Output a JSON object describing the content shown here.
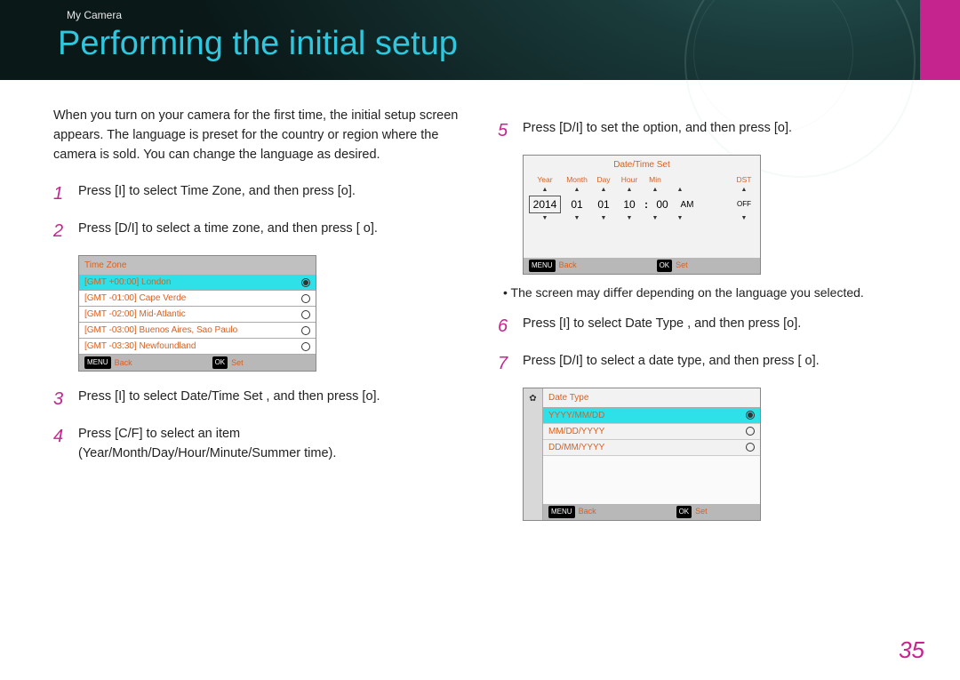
{
  "breadcrumb": "My Camera",
  "title": "Performing the initial setup",
  "page_number": "35",
  "accent_color": "#c5248f",
  "cyan_color": "#2ec7dd",
  "orange_color": "#d96020",
  "highlight_color": "#2ee0e8",
  "intro": "When you turn on your camera for the ﬁrst time, the initial setup screen appears. The language is preset for the country or region where the camera is sold. You can change the language as desired.",
  "steps": {
    "1": "Press [I] to select Time Zone, and then press [o].",
    "2": "Press [D/I] to select a time zone, and then press [      o].",
    "3": "Press [I] to select Date/Time Set    , and then press [o].",
    "4": "Press [C/F] to select an item (Year/Month/Day/Hour/Minute/Summer time).",
    "5": "Press [D/I] to set the option, and then press [o].",
    "6": "Press [I] to select Date Type    , and then press [o].",
    "7": "Press [D/I] to select a date type, and then press [      o]."
  },
  "note": "The screen may diﬀer depending on the language you selected.",
  "timezone_panel": {
    "title": "Time Zone",
    "rows": [
      {
        "label": "[GMT +00:00] London",
        "selected": true
      },
      {
        "label": "[GMT -01:00] Cape Verde",
        "selected": false
      },
      {
        "label": "[GMT -02:00] Mid-Atlantic",
        "selected": false
      },
      {
        "label": "[GMT -03:00] Buenos Aires, Sao Paulo",
        "selected": false
      },
      {
        "label": "[GMT -03:30] Newfoundland",
        "selected": false
      }
    ],
    "footer": {
      "back_key": "MENU",
      "back": "Back",
      "set_key": "OK",
      "set": "Set"
    }
  },
  "datetime_panel": {
    "title": "Date/Time Set",
    "labels": {
      "year": "Year",
      "month": "Month",
      "day": "Day",
      "hour": "Hour",
      "min": "Min",
      "dst": "DST"
    },
    "values": {
      "year": "2014",
      "month": "01",
      "day": "01",
      "hour": "10",
      "min": "00",
      "ampm": "AM",
      "dst": "OFF"
    },
    "footer": {
      "back_key": "MENU",
      "back": "Back",
      "set_key": "OK",
      "set": "Set"
    }
  },
  "datetype_panel": {
    "title": "Date Type",
    "rows": [
      {
        "label": "YYYY/MM/DD",
        "selected": true
      },
      {
        "label": "MM/DD/YYYY",
        "selected": false
      },
      {
        "label": "DD/MM/YYYY",
        "selected": false
      }
    ],
    "footer": {
      "back_key": "MENU",
      "back": "Back",
      "set_key": "OK",
      "set": "Set"
    }
  }
}
